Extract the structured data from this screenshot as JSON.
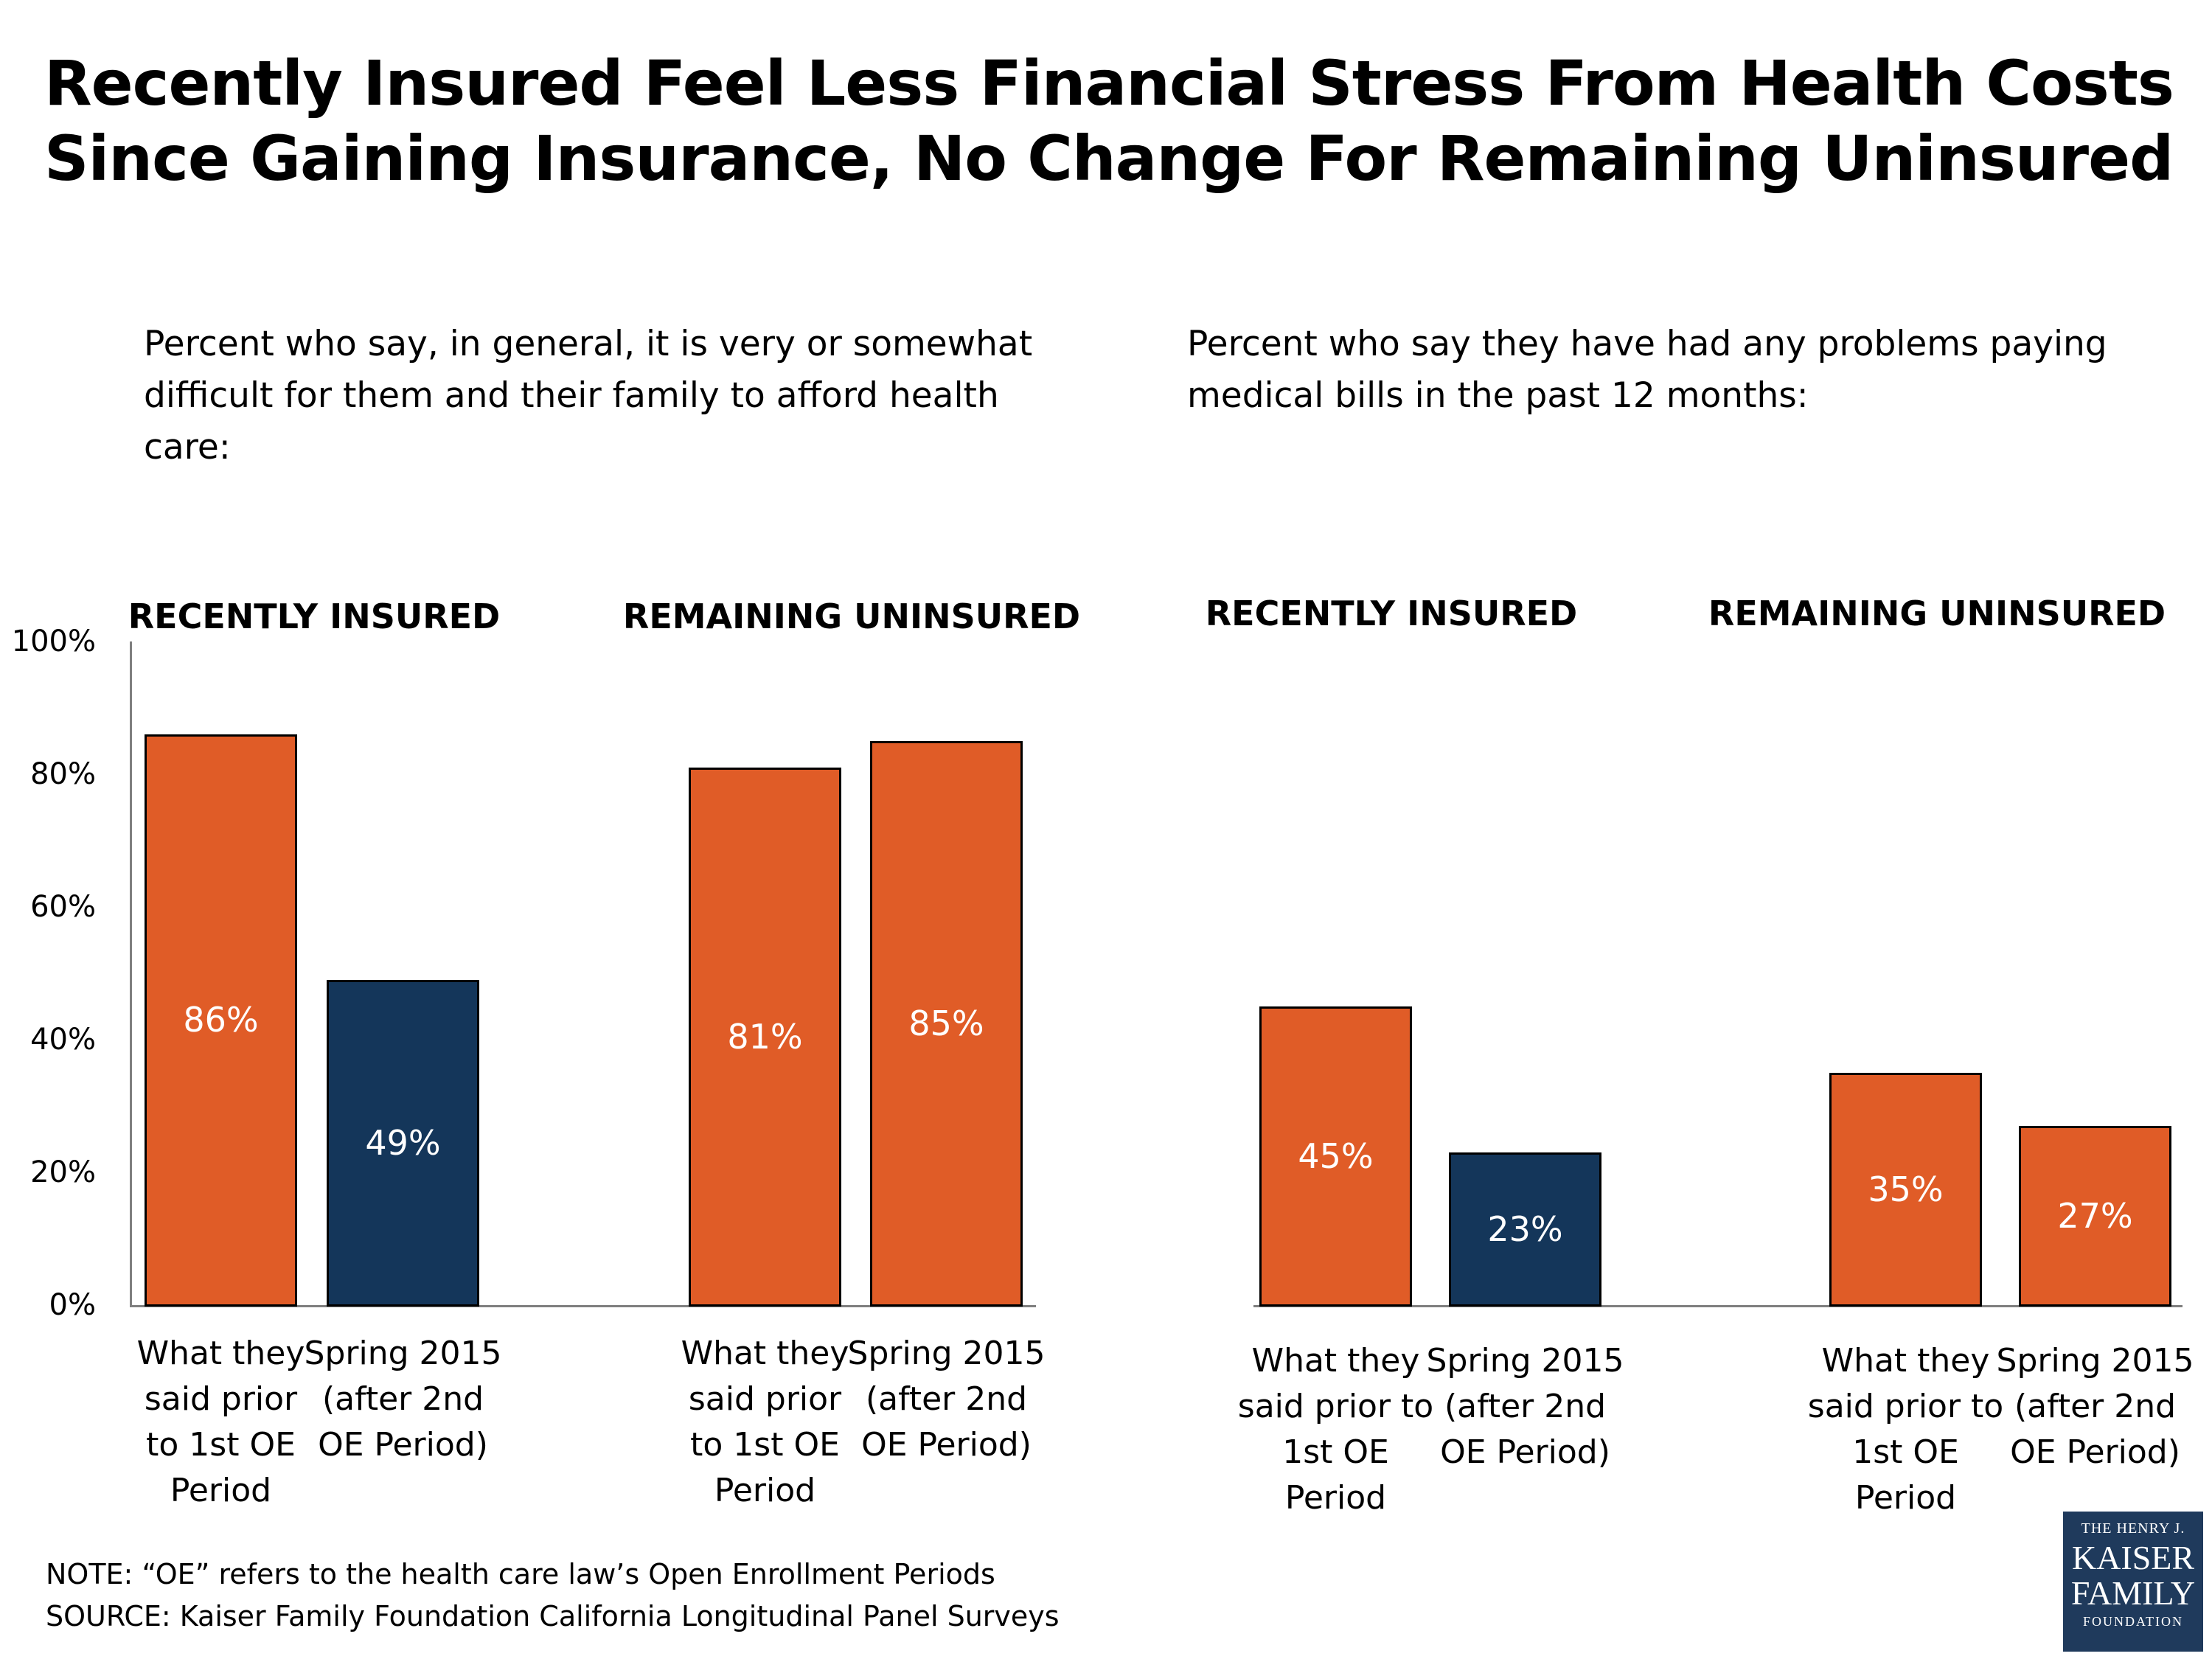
{
  "title": "Recently Insured Feel Less Financial Stress From Health Costs Since Gaining Insurance, No Change For Remaining Uninsured",
  "subtitle_left": "Percent who say, in general, it is very or somewhat difficult for them and their family to afford health care:",
  "subtitle_right": "Percent who say they have had any problems paying medical bills in the past 12 months:",
  "colors": {
    "orange": "#e05c27",
    "navy": "#14365a"
  },
  "chart_data": [
    {
      "type": "bar",
      "title": "Percent who say, in general, it is very or somewhat difficult for them and their family to afford health care:",
      "ylim": [
        0,
        100
      ],
      "yticks": [
        "0%",
        "20%",
        "40%",
        "60%",
        "80%",
        "100%"
      ],
      "grid": false,
      "groups": [
        {
          "name": "RECENTLY INSURED",
          "bars": [
            {
              "category": "What they said prior to 1st OE Period",
              "value": 86,
              "label": "86%",
              "color": "#e05c27"
            },
            {
              "category": "Spring 2015 (after 2nd OE Period)",
              "value": 49,
              "label": "49%",
              "color": "#14365a"
            }
          ]
        },
        {
          "name": "REMAINING UNINSURED",
          "bars": [
            {
              "category": "What they said prior to 1st OE Period",
              "value": 81,
              "label": "81%",
              "color": "#e05c27"
            },
            {
              "category": "Spring 2015 (after 2nd OE Period)",
              "value": 85,
              "label": "85%",
              "color": "#e05c27"
            }
          ]
        }
      ]
    },
    {
      "type": "bar",
      "title": "Percent who say they have had any problems paying medical bills in the past 12 months:",
      "ylim": [
        0,
        100
      ],
      "grid": false,
      "groups": [
        {
          "name": "RECENTLY INSURED",
          "bars": [
            {
              "category": "What they said prior to 1st OE Period",
              "value": 45,
              "label": "45%",
              "color": "#e05c27"
            },
            {
              "category": "Spring 2015 (after 2nd OE Period)",
              "value": 23,
              "label": "23%",
              "color": "#14365a"
            }
          ]
        },
        {
          "name": "REMAINING UNINSURED",
          "bars": [
            {
              "category": "What they said prior to 1st OE Period",
              "value": 35,
              "label": "35%",
              "color": "#e05c27"
            },
            {
              "category": "Spring 2015 (after 2nd OE Period)",
              "value": 27,
              "label": "27%",
              "color": "#e05c27"
            }
          ]
        }
      ]
    }
  ],
  "category_text": {
    "left_prior": "What they\nsaid prior\nto 1st OE\nPeriod",
    "right_prior": "What they\nsaid prior to\n1st OE\nPeriod",
    "spring": "Spring 2015\n(after 2nd\nOE Period)"
  },
  "note": "NOTE: “OE” refers to the health care law’s Open Enrollment  Periods",
  "source": "SOURCE: Kaiser Family Foundation California Longitudinal Panel Surveys",
  "logo": {
    "line1": "THE HENRY J.",
    "line2": "KAISER",
    "line3": "FAMILY",
    "line4": "FOUNDATION"
  }
}
